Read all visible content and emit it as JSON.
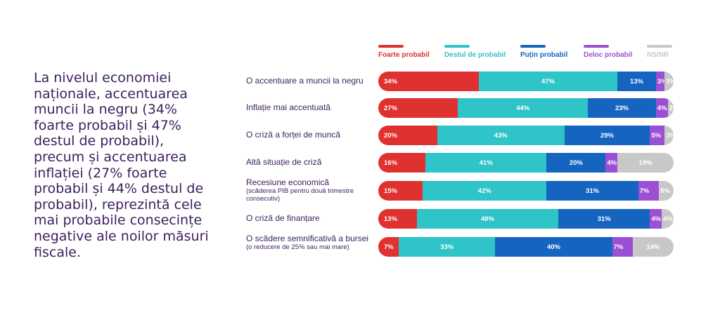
{
  "intro_text": "La nivelul economiei naționale, accentuarea muncii la negru (34% foarte probabil și 47% destul de probabil), precum și accentuarea inflației (27% foarte probabil și 44% destul de probabil), reprezintă cele mai probabile consecințe negative ale noilor măsuri fiscale.",
  "colors": {
    "foarte": "#e03131",
    "destul": "#2ec4c8",
    "putin": "#1565c0",
    "deloc": "#9b4fd4",
    "nsnr": "#c8c8c8"
  },
  "chart_data": {
    "type": "bar",
    "orientation": "horizontal",
    "stacked": true,
    "categories": [
      "O accentuare a muncii la negru",
      "Inflație mai accentuată",
      "O criză a forței de muncă",
      "Altă situație de criză",
      "Recesiune economică",
      "O criză de finanțare",
      "O scădere semnificativă a  bursei"
    ],
    "category_notes": [
      "",
      "",
      "",
      "",
      "(scăderea PIB pentru două trimestre consecutiv)",
      "",
      "(o reducere de 25% sau mai mare)"
    ],
    "series": [
      {
        "name": "Foarte probabil",
        "key": "foarte",
        "values": [
          34,
          27,
          20,
          16,
          15,
          13,
          7
        ]
      },
      {
        "name": "Destul de probabil",
        "key": "destul",
        "values": [
          47,
          44,
          43,
          41,
          42,
          48,
          33
        ]
      },
      {
        "name": "Puțin probabil",
        "key": "putin",
        "values": [
          13,
          23,
          29,
          20,
          31,
          31,
          40
        ]
      },
      {
        "name": "Deloc probabil",
        "key": "deloc",
        "values": [
          3,
          4,
          5,
          4,
          7,
          4,
          7
        ]
      },
      {
        "name": "NS/NR",
        "key": "nsnr",
        "values": [
          3,
          2,
          3,
          19,
          5,
          4,
          14
        ]
      }
    ],
    "value_labels": [
      [
        "34%",
        "47%",
        "13%",
        "3%",
        "3%"
      ],
      [
        "27%",
        "44%",
        "23%",
        "4%",
        "2%"
      ],
      [
        "20%",
        "43%",
        "29%",
        "5%",
        "3%"
      ],
      [
        "16%",
        "41%",
        "20%",
        "4%",
        "19%"
      ],
      [
        "15%",
        "42%",
        "31%",
        "7%",
        "5%"
      ],
      [
        "13%",
        "48%",
        "31%",
        "4%",
        "4%"
      ],
      [
        "7%",
        "33%",
        "40%",
        "7%",
        "14%"
      ]
    ],
    "legend_position": "top"
  }
}
